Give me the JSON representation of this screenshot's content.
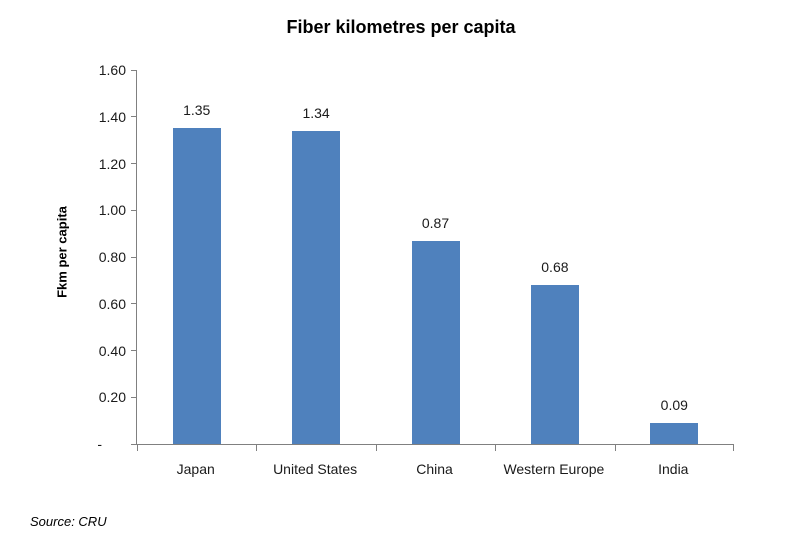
{
  "chart_data": {
    "type": "bar",
    "title": "Fiber kilometres per capita",
    "xlabel": "",
    "ylabel": "Fkm per capita",
    "categories": [
      "Japan",
      "United States",
      "China",
      "Western Europe",
      "India"
    ],
    "values": [
      1.35,
      1.34,
      0.87,
      0.68,
      0.09
    ],
    "value_labels": [
      "1.35",
      "1.34",
      "0.87",
      "0.68",
      "0.09"
    ],
    "ylim": [
      0,
      1.6
    ],
    "y_ticks": [
      {
        "value": 1.6,
        "label": "1.60"
      },
      {
        "value": 1.4,
        "label": "1.40"
      },
      {
        "value": 1.2,
        "label": "1.20"
      },
      {
        "value": 1.0,
        "label": "1.00"
      },
      {
        "value": 0.8,
        "label": "0.80"
      },
      {
        "value": 0.6,
        "label": "0.60"
      },
      {
        "value": 0.4,
        "label": "0.40"
      },
      {
        "value": 0.2,
        "label": "0.20"
      },
      {
        "value": 0.0,
        "label": "-"
      }
    ],
    "grid": "off",
    "legend": "none",
    "bar_color": "#4F81BD",
    "axis_color": "#808080"
  },
  "footer": {
    "source": "Source: CRU"
  }
}
